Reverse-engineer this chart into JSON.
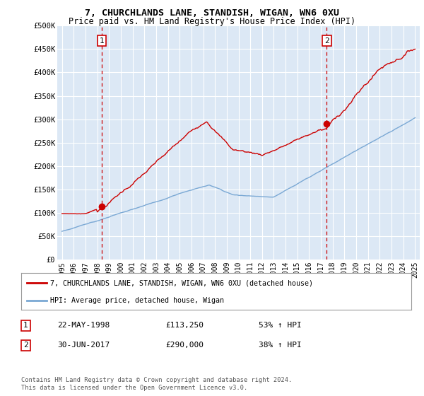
{
  "title1": "7, CHURCHLANDS LANE, STANDISH, WIGAN, WN6 0XU",
  "title2": "Price paid vs. HM Land Registry's House Price Index (HPI)",
  "ylabel_ticks": [
    "£0",
    "£50K",
    "£100K",
    "£150K",
    "£200K",
    "£250K",
    "£300K",
    "£350K",
    "£400K",
    "£450K",
    "£500K"
  ],
  "ytick_values": [
    0,
    50000,
    100000,
    150000,
    200000,
    250000,
    300000,
    350000,
    400000,
    450000,
    500000
  ],
  "xlim": [
    1994.6,
    2025.4
  ],
  "ylim": [
    0,
    500000
  ],
  "xtick_years": [
    1995,
    1996,
    1997,
    1998,
    1999,
    2000,
    2001,
    2002,
    2003,
    2004,
    2005,
    2006,
    2007,
    2008,
    2009,
    2010,
    2011,
    2012,
    2013,
    2014,
    2015,
    2016,
    2017,
    2018,
    2019,
    2020,
    2021,
    2022,
    2023,
    2024,
    2025
  ],
  "background_color": "#dce8f5",
  "grid_color": "#ffffff",
  "sale1_x": 1998.38,
  "sale1_y": 113250,
  "sale2_x": 2017.5,
  "sale2_y": 290000,
  "legend_line1": "7, CHURCHLANDS LANE, STANDISH, WIGAN, WN6 0XU (detached house)",
  "legend_line2": "HPI: Average price, detached house, Wigan",
  "table_row1_num": "1",
  "table_row1_date": "22-MAY-1998",
  "table_row1_price": "£113,250",
  "table_row1_hpi": "53% ↑ HPI",
  "table_row2_num": "2",
  "table_row2_date": "30-JUN-2017",
  "table_row2_price": "£290,000",
  "table_row2_hpi": "38% ↑ HPI",
  "footer": "Contains HM Land Registry data © Crown copyright and database right 2024.\nThis data is licensed under the Open Government Licence v3.0.",
  "red_color": "#cc0000",
  "blue_color": "#7aa8d4",
  "dashed_red": "#cc0000"
}
